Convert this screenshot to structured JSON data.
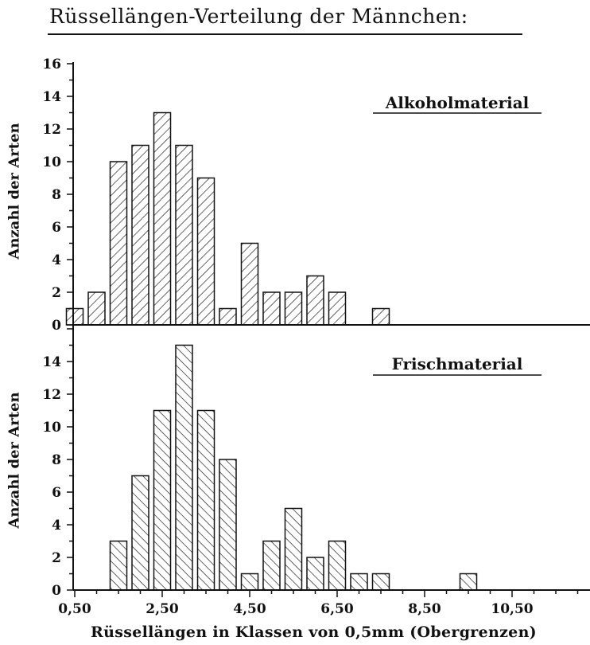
{
  "title": "Rüssellängen-Verteilung der Männchen:",
  "chart_data": [
    {
      "type": "bar",
      "panel_label": "Alkoholmaterial",
      "ylabel": "Anzahl der Arten",
      "xlabel": "",
      "ylim": [
        0,
        16
      ],
      "yticks": [
        0,
        2,
        4,
        6,
        8,
        10,
        12,
        14,
        16
      ],
      "hatch": "diagonal-up",
      "x": [
        0.5,
        1.0,
        1.5,
        2.0,
        2.5,
        3.0,
        3.5,
        4.0,
        4.5,
        5.0,
        5.5,
        6.0,
        6.5,
        7.0,
        7.5
      ],
      "values": [
        1,
        2,
        10,
        11,
        13,
        11,
        9,
        1,
        5,
        2,
        2,
        3,
        2,
        0,
        1
      ]
    },
    {
      "type": "bar",
      "panel_label": "Frischmaterial",
      "ylabel": "Anzahl der Arten",
      "xlabel": "Rüssellängen in Klassen von 0,5mm (Obergrenzen)",
      "ylim": [
        0,
        16
      ],
      "yticks": [
        0,
        2,
        4,
        6,
        8,
        10,
        12,
        14
      ],
      "hatch": "diagonal-down",
      "x": [
        1.5,
        2.0,
        2.5,
        3.0,
        3.5,
        4.0,
        4.5,
        5.0,
        5.5,
        6.0,
        6.5,
        7.0,
        7.5,
        8.0,
        8.5,
        9.0,
        9.5
      ],
      "values": [
        3,
        7,
        11,
        15,
        11,
        8,
        1,
        3,
        5,
        2,
        3,
        1,
        1,
        0,
        0,
        0,
        1
      ],
      "xticks": [
        "0,50",
        "2,50",
        "4,50",
        "6,50",
        "8,50",
        "10,50"
      ]
    }
  ]
}
